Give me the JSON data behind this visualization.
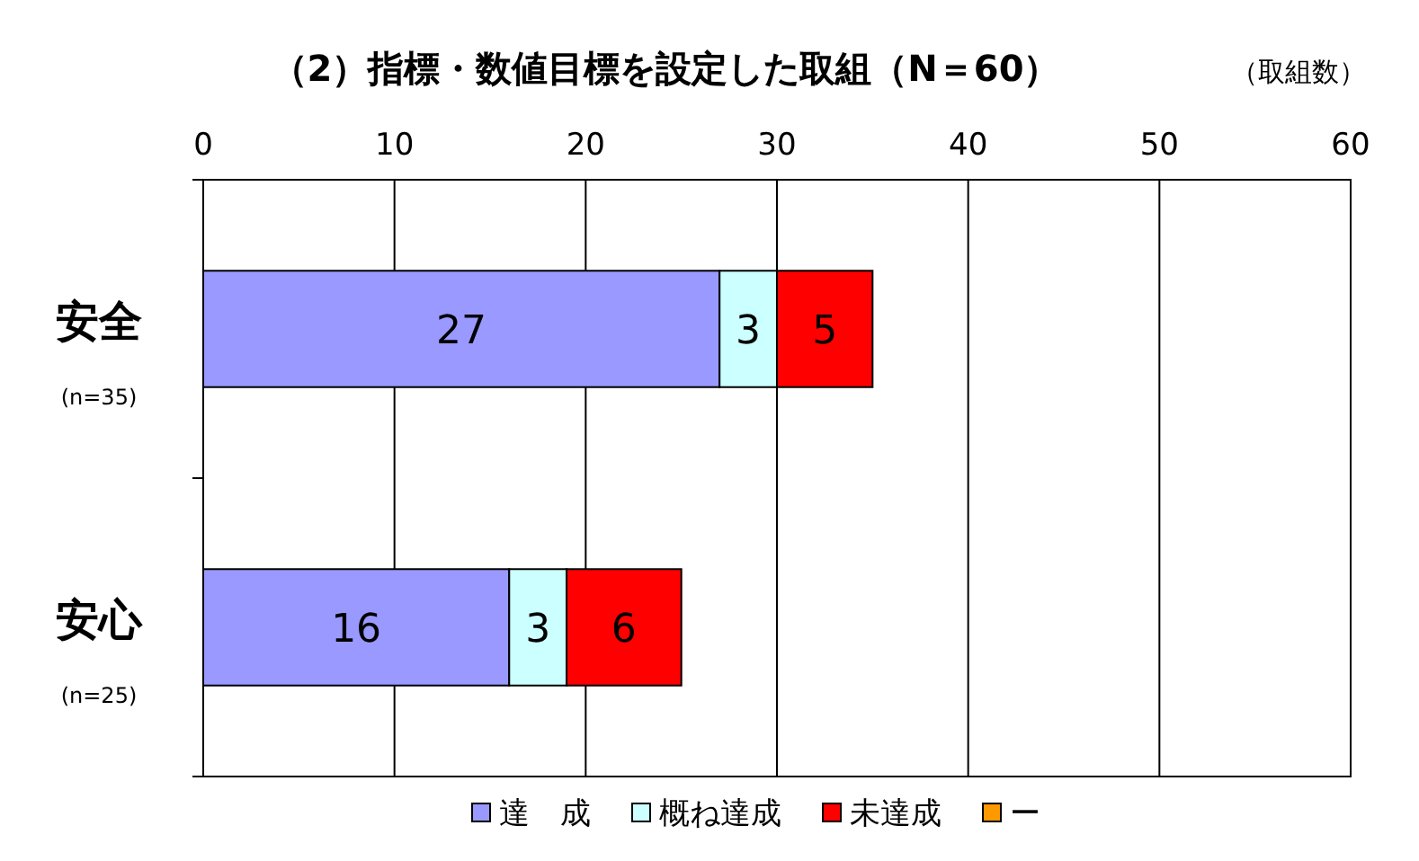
{
  "chart_data": {
    "type": "bar",
    "orientation": "horizontal",
    "stacked": true,
    "title": "（2）指標・数値目標を設定した取組（N＝60）",
    "xlabel": "（取組数）",
    "categories": [
      "安全\n(n=35)",
      "安心\n(n=25)"
    ],
    "series": [
      {
        "name": "達　成",
        "color": "#9999ff",
        "values": [
          27,
          16
        ],
        "value_labels": [
          "27",
          "16"
        ]
      },
      {
        "name": "概ね達成",
        "color": "#ccffff",
        "values": [
          3,
          3
        ],
        "value_labels": [
          "3",
          "3"
        ]
      },
      {
        "name": "未達成",
        "color": "#ff0000",
        "values": [
          5,
          6
        ],
        "value_labels": [
          "5",
          "6"
        ]
      },
      {
        "name": "ー",
        "color": "#ff9900",
        "values": [
          0,
          0
        ],
        "value_labels": [
          null,
          null
        ]
      }
    ],
    "xlim": [
      0,
      60
    ],
    "xticks": [
      0,
      10,
      20,
      30,
      40,
      50,
      60
    ],
    "grid": "x",
    "legend": "bottom"
  }
}
